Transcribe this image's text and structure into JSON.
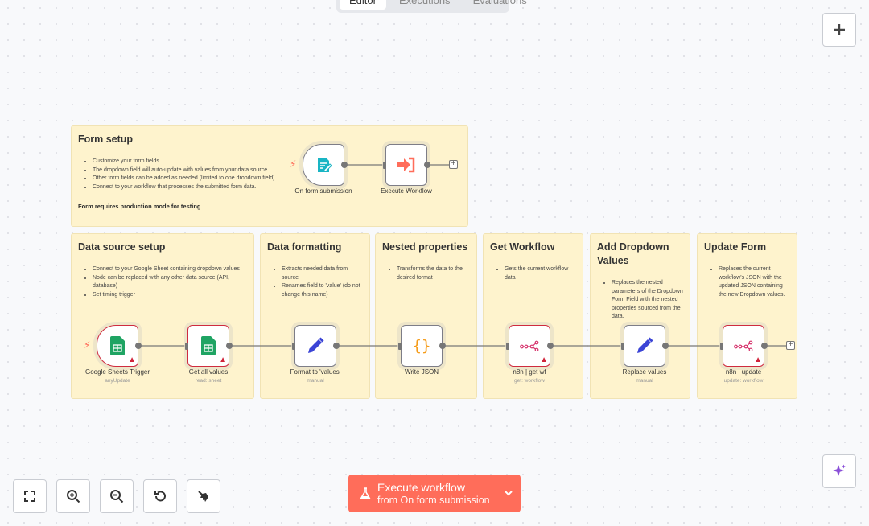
{
  "tabs": [
    "Editor",
    "Executions",
    "Evaluations"
  ],
  "stickies": [
    {
      "title": "Form setup",
      "bullets": [
        "Customize your form fields.",
        "The dropdown field will auto-update with values from your data source.",
        "Other form fields can be added as needed (limited to one dropdown field).",
        "Connect to your workflow that processes the submitted form data."
      ],
      "note": "Form requires production mode for testing"
    },
    {
      "title": "Data source setup",
      "bullets": [
        "Connect to your Google Sheet containing dropdown values",
        "Node can be replaced with any other data source (API, database)",
        "Set timing trigger"
      ]
    },
    {
      "title": "Data formatting",
      "bullets": [
        "Extracts needed data from source",
        "Renames field to 'value' (do not change this name)"
      ]
    },
    {
      "title": "Nested properties",
      "bullets": [
        "Transforms the data to the desired format"
      ]
    },
    {
      "title": "Get Workflow",
      "bullets": [
        "Gets the current workflow data"
      ]
    },
    {
      "title": "Add Dropdown Values",
      "bullets": [
        "Replaces the nested parameters of the Dropdown Form Field with the nested properties sourced from the data."
      ]
    },
    {
      "title": "Update Form",
      "bullets": [
        "Replaces the current workflow's JSON with the updated JSON containing the new Dropdown values."
      ]
    }
  ],
  "nodes": [
    {
      "name": "On form submission",
      "subtitle": "",
      "icon": "form-icon",
      "trigger": true,
      "error": false
    },
    {
      "name": "Execute Workflow",
      "subtitle": "",
      "icon": "execute-workflow-icon",
      "trigger": false,
      "error": false
    },
    {
      "name": "Google Sheets Trigger",
      "subtitle": "anyUpdate",
      "icon": "google-sheets-icon",
      "trigger": true,
      "error": true
    },
    {
      "name": "Get all values",
      "subtitle": "read: sheet",
      "icon": "google-sheets-icon",
      "trigger": false,
      "error": true
    },
    {
      "name": "Format to 'values'",
      "subtitle": "manual",
      "icon": "pencil-icon",
      "trigger": false,
      "error": false
    },
    {
      "name": "Write JSON",
      "subtitle": "",
      "icon": "code-braces-icon",
      "trigger": false,
      "error": false
    },
    {
      "name": "n8n | get wf",
      "subtitle": "get: workflow",
      "icon": "n8n-icon",
      "trigger": false,
      "error": true
    },
    {
      "name": "Replace values",
      "subtitle": "manual",
      "icon": "pencil-icon",
      "trigger": false,
      "error": false
    },
    {
      "name": "n8n | update",
      "subtitle": "update: workflow",
      "icon": "n8n-icon",
      "trigger": false,
      "error": true
    }
  ],
  "execute": {
    "label": "Execute workflow",
    "sublabel": "from On form submission"
  },
  "colors": {
    "accent": "#ff6d5a",
    "sticky": "#fef3cd",
    "error": "#cf2b3f",
    "pencil": "#3b44d6",
    "sheets": "#1fa463",
    "braces": "#f59c1a"
  }
}
